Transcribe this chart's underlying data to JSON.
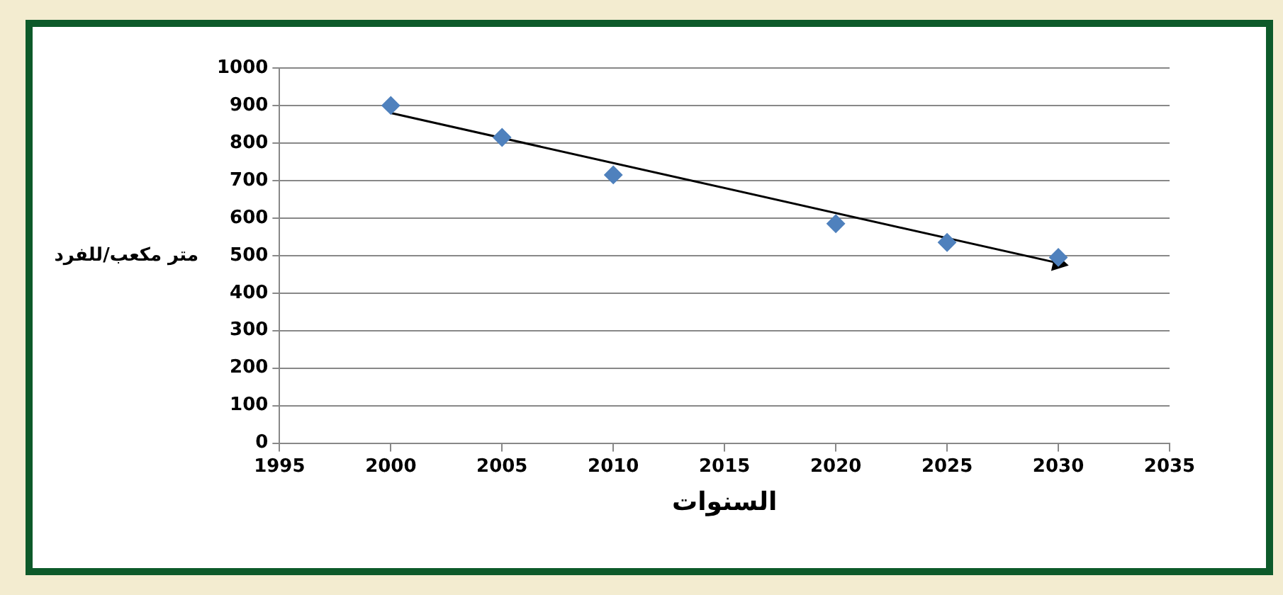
{
  "chart_data": {
    "type": "scatter",
    "xlabel": "السنوات",
    "ylabel": "متر مكعب/للفرد",
    "x": [
      2000,
      2005,
      2010,
      2020,
      2025,
      2030
    ],
    "series": [
      {
        "type": "scatter",
        "color": "#4f81bd",
        "marker": "diamond",
        "values": [
          900,
          815,
          715,
          585,
          535,
          495
        ]
      },
      {
        "type": "line",
        "color": "#000000",
        "x": [
          2000,
          2030
        ],
        "values": [
          880,
          480
        ]
      }
    ],
    "xlim": [
      1995,
      2035
    ],
    "xticks": [
      1995,
      2000,
      2005,
      2010,
      2015,
      2020,
      2025,
      2030,
      2035
    ],
    "ylim": [
      0,
      1000
    ],
    "yticks": [
      0,
      100,
      200,
      300,
      400,
      500,
      600,
      700,
      800,
      900,
      1000
    ],
    "grid": "y",
    "legend": false
  }
}
